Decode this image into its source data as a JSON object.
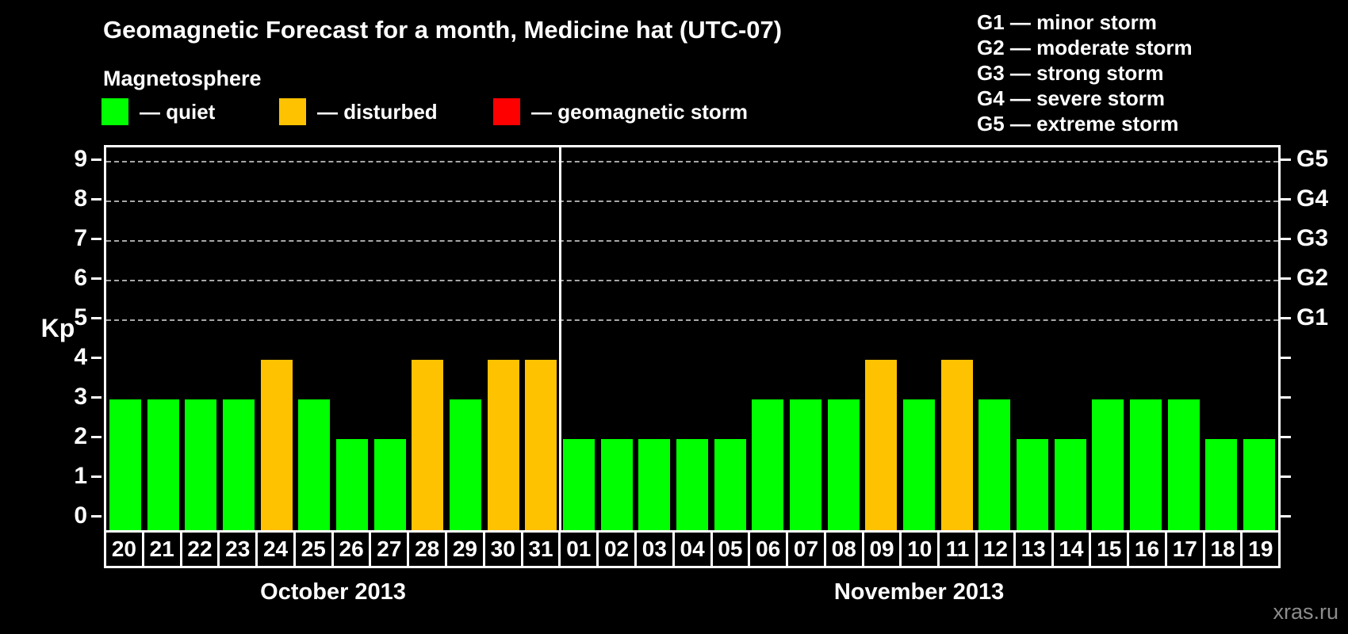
{
  "header": {
    "title": "Geomagnetic Forecast for a month, Medicine hat (UTC-07)",
    "subtitle": "Magnetosphere",
    "legend": [
      {
        "name": "quiet",
        "label": "— quiet",
        "color": "#00ff00"
      },
      {
        "name": "disturbed",
        "label": "— disturbed",
        "color": "#ffc200"
      },
      {
        "name": "storm",
        "label": "— geomagnetic storm",
        "color": "#ff0000"
      }
    ],
    "g_scale": [
      "G1 — minor storm",
      "G2 — moderate storm",
      "G3 — strong storm",
      "G4 — severe storm",
      "G5 — extreme storm"
    ]
  },
  "chart_data": {
    "type": "bar",
    "title": "Geomagnetic Forecast for a month, Medicine hat (UTC-07)",
    "xlabel": "",
    "ylabel": "Kp",
    "ylim": [
      0,
      9
    ],
    "yticks": [
      0,
      1,
      2,
      3,
      4,
      5,
      6,
      7,
      8,
      9
    ],
    "grid": "dashed horizontal lines at Kp 5-9 only",
    "grid_levels_kp": [
      5,
      6,
      7,
      8,
      9
    ],
    "right_axis_labels": [
      {
        "kp": 5,
        "label": "G1"
      },
      {
        "kp": 6,
        "label": "G2"
      },
      {
        "kp": 7,
        "label": "G3"
      },
      {
        "kp": 8,
        "label": "G4"
      },
      {
        "kp": 9,
        "label": "G5"
      }
    ],
    "status_colors": {
      "quiet": "#00ff00",
      "disturbed": "#ffc200",
      "storm": "#ff0000"
    },
    "months": [
      {
        "label": "October 2013",
        "days": [
          {
            "day": "20",
            "kp": 3,
            "status": "quiet"
          },
          {
            "day": "21",
            "kp": 3,
            "status": "quiet"
          },
          {
            "day": "22",
            "kp": 3,
            "status": "quiet"
          },
          {
            "day": "23",
            "kp": 3,
            "status": "quiet"
          },
          {
            "day": "24",
            "kp": 4,
            "status": "disturbed"
          },
          {
            "day": "25",
            "kp": 3,
            "status": "quiet"
          },
          {
            "day": "26",
            "kp": 2,
            "status": "quiet"
          },
          {
            "day": "27",
            "kp": 2,
            "status": "quiet"
          },
          {
            "day": "28",
            "kp": 4,
            "status": "disturbed"
          },
          {
            "day": "29",
            "kp": 3,
            "status": "quiet"
          },
          {
            "day": "30",
            "kp": 4,
            "status": "disturbed"
          },
          {
            "day": "31",
            "kp": 4,
            "status": "disturbed"
          }
        ]
      },
      {
        "label": "November 2013",
        "days": [
          {
            "day": "01",
            "kp": 2,
            "status": "quiet"
          },
          {
            "day": "02",
            "kp": 2,
            "status": "quiet"
          },
          {
            "day": "03",
            "kp": 2,
            "status": "quiet"
          },
          {
            "day": "04",
            "kp": 2,
            "status": "quiet"
          },
          {
            "day": "05",
            "kp": 2,
            "status": "quiet"
          },
          {
            "day": "06",
            "kp": 3,
            "status": "quiet"
          },
          {
            "day": "07",
            "kp": 3,
            "status": "quiet"
          },
          {
            "day": "08",
            "kp": 3,
            "status": "quiet"
          },
          {
            "day": "09",
            "kp": 4,
            "status": "disturbed"
          },
          {
            "day": "10",
            "kp": 3,
            "status": "quiet"
          },
          {
            "day": "11",
            "kp": 4,
            "status": "disturbed"
          },
          {
            "day": "12",
            "kp": 3,
            "status": "quiet"
          },
          {
            "day": "13",
            "kp": 2,
            "status": "quiet"
          },
          {
            "day": "14",
            "kp": 2,
            "status": "quiet"
          },
          {
            "day": "15",
            "kp": 3,
            "status": "quiet"
          },
          {
            "day": "16",
            "kp": 3,
            "status": "quiet"
          },
          {
            "day": "17",
            "kp": 3,
            "status": "quiet"
          },
          {
            "day": "18",
            "kp": 2,
            "status": "quiet"
          },
          {
            "day": "19",
            "kp": 2,
            "status": "quiet"
          }
        ]
      }
    ]
  },
  "watermark": "xras.ru"
}
